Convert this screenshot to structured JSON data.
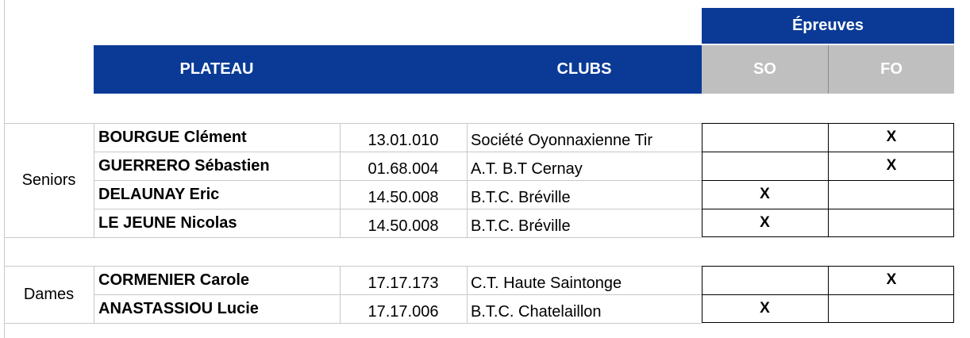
{
  "header": {
    "epreuves": "Épreuves",
    "plateau": "PLATEAU",
    "clubs": "CLUBS",
    "so": "SO",
    "fo": "FO"
  },
  "groups": [
    {
      "category": "Seniors",
      "rows": [
        {
          "name": "BOURGUE Clément",
          "licence": "13.01.010",
          "club": "Société Oyonnaxienne Tir",
          "so": "",
          "fo": "X"
        },
        {
          "name": "GUERRERO Sébastien",
          "licence": "01.68.004",
          "club": "A.T. B.T Cernay",
          "so": "",
          "fo": "X"
        },
        {
          "name": "DELAUNAY Eric",
          "licence": "14.50.008",
          "club": "B.T.C. Bréville",
          "so": "X",
          "fo": ""
        },
        {
          "name": "LE JEUNE Nicolas",
          "licence": "14.50.008",
          "club": "B.T.C. Bréville",
          "so": "X",
          "fo": ""
        }
      ]
    },
    {
      "category": "Dames",
      "rows": [
        {
          "name": "CORMENIER Carole",
          "licence": "17.17.173",
          "club": "C.T. Haute Saintonge",
          "so": "",
          "fo": "X"
        },
        {
          "name": "ANASTASSIOU Lucie",
          "licence": "17.17.006",
          "club": "B.T.C. Chatelaillon",
          "so": "X",
          "fo": ""
        }
      ]
    }
  ],
  "colors": {
    "header_blue": "#0a3a96",
    "header_grey": "#bfbfbf",
    "header_text": "#ffffff"
  }
}
